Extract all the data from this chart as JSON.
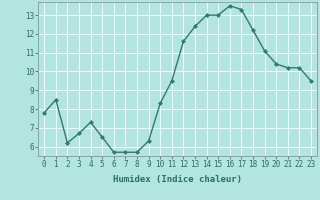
{
  "x": [
    0,
    1,
    2,
    3,
    4,
    5,
    6,
    7,
    8,
    9,
    10,
    11,
    12,
    13,
    14,
    15,
    16,
    17,
    18,
    19,
    20,
    21,
    22,
    23
  ],
  "y": [
    7.8,
    8.5,
    6.2,
    6.7,
    7.3,
    6.5,
    5.7,
    5.7,
    5.7,
    6.3,
    8.3,
    9.5,
    11.6,
    12.4,
    13.0,
    13.0,
    13.5,
    13.3,
    12.2,
    11.1,
    10.4,
    10.2,
    10.2,
    9.5
  ],
  "line_color": "#2d7d6e",
  "marker": "D",
  "marker_size": 2.0,
  "bg_color": "#b2e4e0",
  "grid_color": "#ffffff",
  "xlabel": "Humidex (Indice chaleur)",
  "ylim": [
    5.5,
    13.7
  ],
  "xlim": [
    -0.5,
    23.5
  ],
  "yticks": [
    6,
    7,
    8,
    9,
    10,
    11,
    12,
    13
  ],
  "xticks": [
    0,
    1,
    2,
    3,
    4,
    5,
    6,
    7,
    8,
    9,
    10,
    11,
    12,
    13,
    14,
    15,
    16,
    17,
    18,
    19,
    20,
    21,
    22,
    23
  ],
  "tick_label_fontsize": 5.5,
  "xlabel_fontsize": 6.5,
  "line_width": 1.0,
  "tick_color": "#2d6e62",
  "label_color": "#2d6e62"
}
